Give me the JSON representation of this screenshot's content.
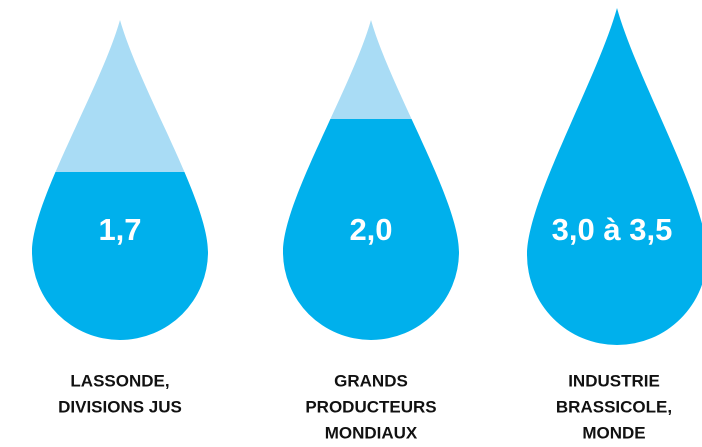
{
  "drops": [
    {
      "value": "1,7",
      "caption": [
        "LASSONDE,",
        "DIVISIONS JUS"
      ]
    },
    {
      "value": "2,0",
      "caption": [
        "GRANDS",
        "PRODUCTEURS",
        "MONDIAUX"
      ]
    },
    {
      "value": "3,0 à 3,5",
      "caption": [
        "INDUSTRIE",
        "BRASSICOLE,",
        "MONDE"
      ]
    }
  ]
}
